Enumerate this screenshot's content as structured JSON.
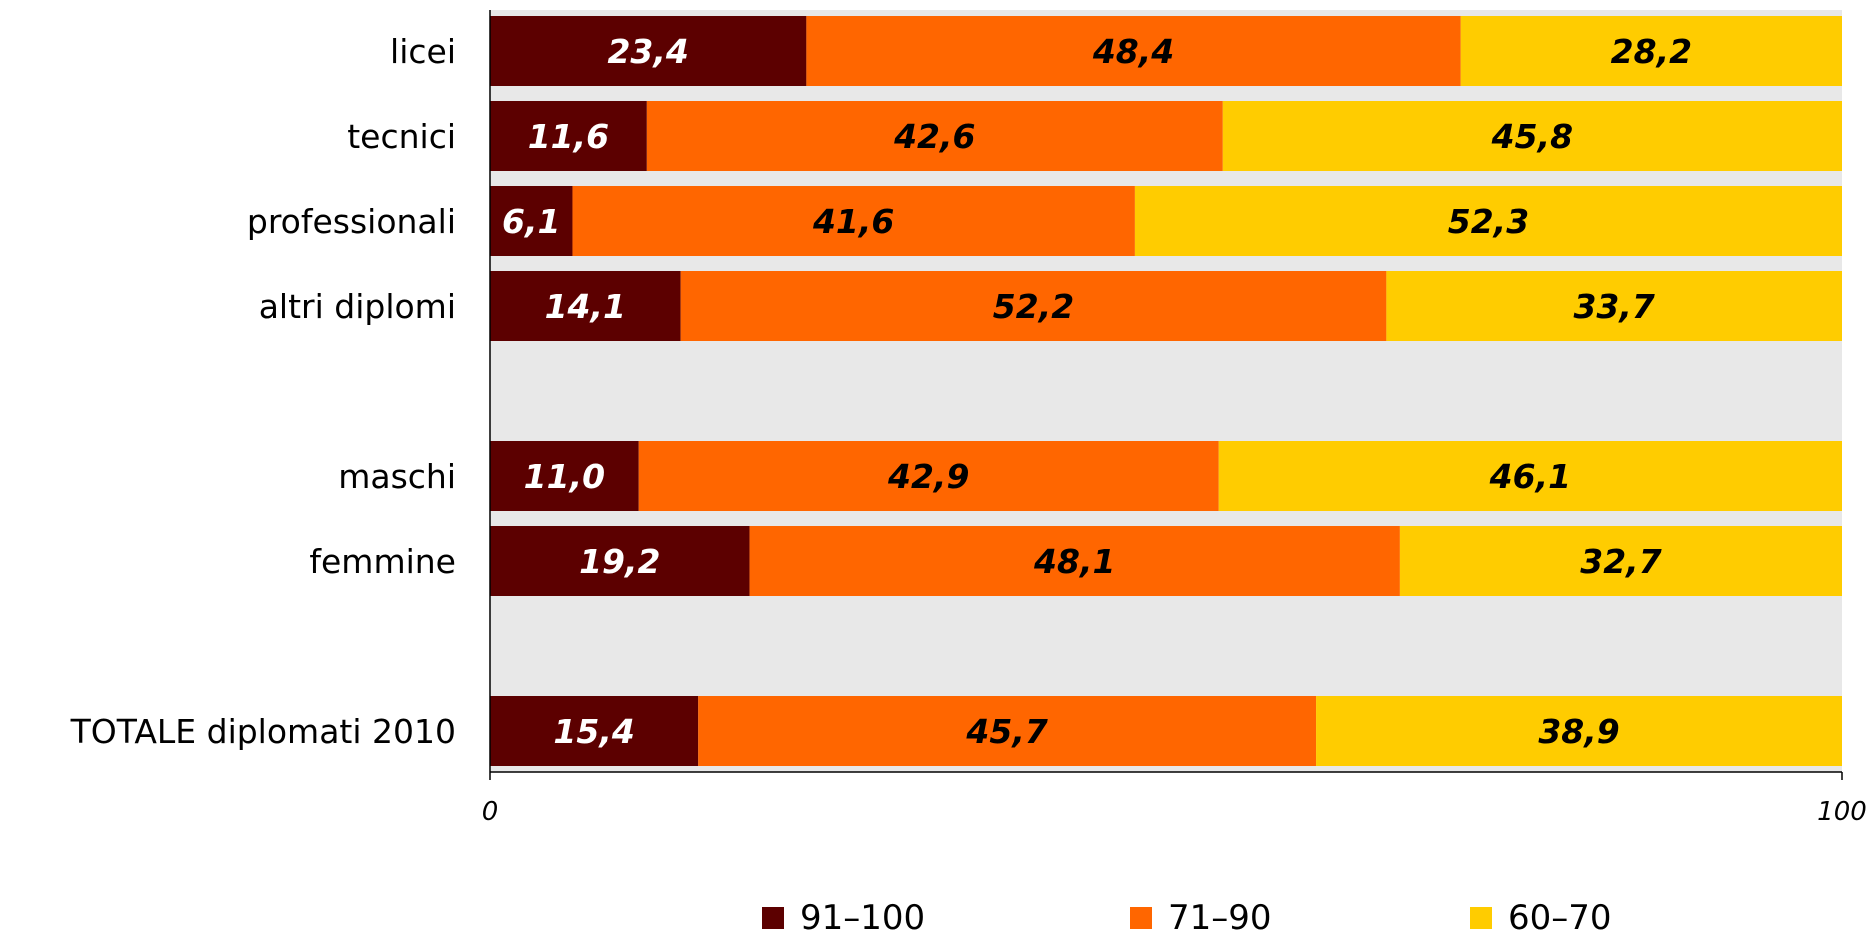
{
  "chart_data": {
    "type": "bar",
    "orientation": "horizontal",
    "stacked": "percent",
    "categories": [
      "licei",
      "tecnici",
      "professionali",
      "altri diplomi",
      "",
      "maschi",
      "femmine",
      "",
      "TOTALE diplomati 2010"
    ],
    "series": [
      {
        "name": "91–100",
        "color": "#5c0000",
        "label_color": "#ffffff",
        "values": [
          23.4,
          11.6,
          6.1,
          14.1,
          null,
          11.0,
          19.2,
          null,
          15.4
        ],
        "labels": [
          "23,4",
          "11,6",
          "6,1",
          "14,1",
          null,
          "11,0",
          "19,2",
          null,
          "15,4"
        ]
      },
      {
        "name": "71–90",
        "color": "#ff6600",
        "label_color": "#000000",
        "values": [
          48.4,
          42.6,
          41.6,
          52.2,
          null,
          42.9,
          48.1,
          null,
          45.7
        ],
        "labels": [
          "48,4",
          "42,6",
          "41,6",
          "52,2",
          null,
          "42,9",
          "48,1",
          null,
          "45,7"
        ]
      },
      {
        "name": "60–70",
        "color": "#ffcc00",
        "label_color": "#000000",
        "values": [
          28.2,
          45.8,
          52.3,
          33.7,
          null,
          46.1,
          32.7,
          null,
          38.9
        ],
        "labels": [
          "28,2",
          "45,8",
          "52,3",
          "33,7",
          null,
          "46,1",
          "32,7",
          null,
          "38,9"
        ]
      }
    ],
    "xlim": [
      0,
      100
    ],
    "xticks": [
      "0",
      "100"
    ],
    "grid": false,
    "plot_background": "#e8e8e8",
    "legend_position": "bottom"
  }
}
